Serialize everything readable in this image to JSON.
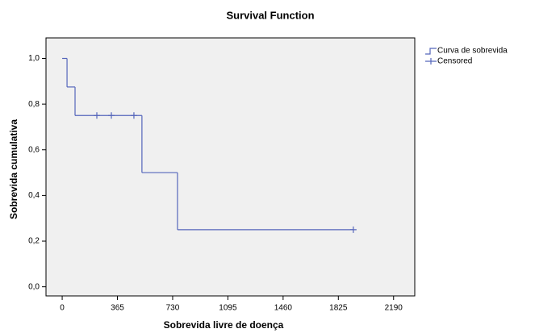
{
  "chart_data": {
    "type": "step",
    "title": "Survival Function",
    "x_label": "Sobrevida livre de doença",
    "y_label": "Sobrevida cumulativa",
    "xlim": [
      -107,
      2330
    ],
    "ylim": [
      -0.04,
      1.09
    ],
    "xticks": [
      0,
      365,
      730,
      1095,
      1460,
      1825,
      2190
    ],
    "yticks": [
      {
        "value": 0,
        "label": "0,0"
      },
      {
        "value": 0.2,
        "label": "0,2"
      },
      {
        "value": 0.4,
        "label": "0,4"
      },
      {
        "value": 0.6,
        "label": "0,6"
      },
      {
        "value": 0.8,
        "label": "0,8"
      },
      {
        "value": 1,
        "label": "1,0"
      }
    ],
    "series": [
      {
        "name": "Curva de sobrevida",
        "style": "step",
        "color": "#5566bb",
        "x": [
          0,
          32,
          85,
          527,
          762,
          1924
        ],
        "values": [
          1,
          0.875,
          0.75,
          0.5,
          0.25,
          0.25
        ]
      },
      {
        "name": "Censored",
        "style": "cross",
        "color": "#5566bb",
        "x": [
          229,
          325,
          474,
          1924
        ],
        "values": [
          0.75,
          0.75,
          0.75,
          0.25
        ]
      }
    ]
  }
}
